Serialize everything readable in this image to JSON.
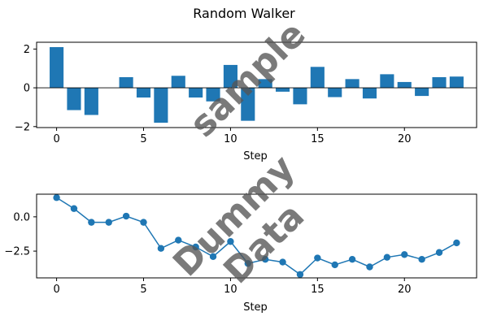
{
  "watermark": {
    "line1": "sample",
    "line2": "Dummy",
    "line3": "Data"
  },
  "chart_data": [
    {
      "type": "bar",
      "title": "Random Walker",
      "xlabel": "Step",
      "ylabel": "",
      "x": [
        0,
        1,
        2,
        3,
        4,
        5,
        6,
        7,
        8,
        9,
        10,
        11,
        12,
        13,
        14,
        15,
        16,
        17,
        18,
        19,
        20,
        21,
        22,
        23
      ],
      "values": [
        2.1,
        -1.15,
        -1.4,
        0,
        0.55,
        -0.5,
        -1.8,
        0.62,
        -0.5,
        -0.7,
        1.18,
        -1.7,
        0.45,
        -0.2,
        -0.85,
        1.08,
        -0.48,
        0.45,
        -0.55,
        0.7,
        0.3,
        -0.42,
        0.55,
        0.58
      ],
      "xlim": [
        -1.15,
        24.15
      ],
      "ylim": [
        -2.05,
        2.35
      ],
      "xticks": [
        0,
        5,
        10,
        15,
        20
      ],
      "yticks": [
        2,
        0,
        -2
      ],
      "ytick_labels": [
        "2",
        "0",
        "−2"
      ],
      "color": "#1f77b4",
      "zero_line": true
    },
    {
      "type": "line",
      "xlabel": "Step",
      "ylabel": "",
      "x": [
        0,
        1,
        2,
        3,
        4,
        5,
        6,
        7,
        8,
        9,
        10,
        11,
        12,
        13,
        14,
        15,
        16,
        17,
        18,
        19,
        20,
        21,
        22,
        23
      ],
      "y": [
        1.4,
        0.6,
        -0.4,
        -0.4,
        0.05,
        -0.4,
        -2.3,
        -1.7,
        -2.2,
        -2.9,
        -1.8,
        -3.4,
        -3.1,
        -3.3,
        -4.2,
        -3.0,
        -3.5,
        -3.1,
        -3.65,
        -2.95,
        -2.75,
        -3.1,
        -2.6,
        -1.9
      ],
      "xlim": [
        -1.15,
        24.15
      ],
      "ylim": [
        -4.45,
        1.65
      ],
      "xticks": [
        0,
        5,
        10,
        15,
        20
      ],
      "yticks": [
        0,
        -2.5
      ],
      "ytick_labels": [
        "0.0",
        "−2.5"
      ],
      "color": "#1f77b4",
      "marker": "circle"
    }
  ]
}
